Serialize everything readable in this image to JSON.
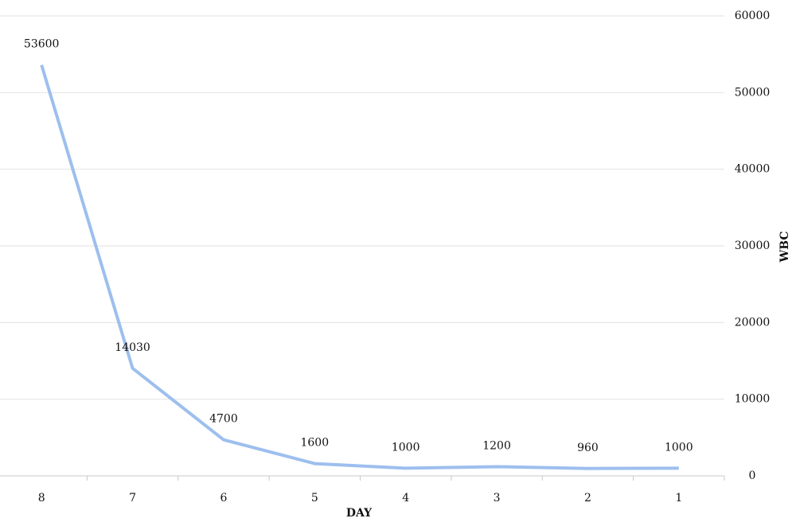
{
  "chart_data": {
    "type": "line",
    "x_label": "DAY",
    "y_label": "WBC",
    "categories": [
      "8",
      "7",
      "6",
      "5",
      "4",
      "3",
      "2",
      "1"
    ],
    "values": [
      53600,
      14030,
      4700,
      1600,
      1000,
      1200,
      960,
      1000
    ],
    "color": "#9dbfee",
    "ylim": [
      0,
      60000
    ],
    "yticks": [
      0,
      10000,
      20000,
      30000,
      40000,
      50000,
      60000
    ],
    "grid": true,
    "data_labels": true
  }
}
